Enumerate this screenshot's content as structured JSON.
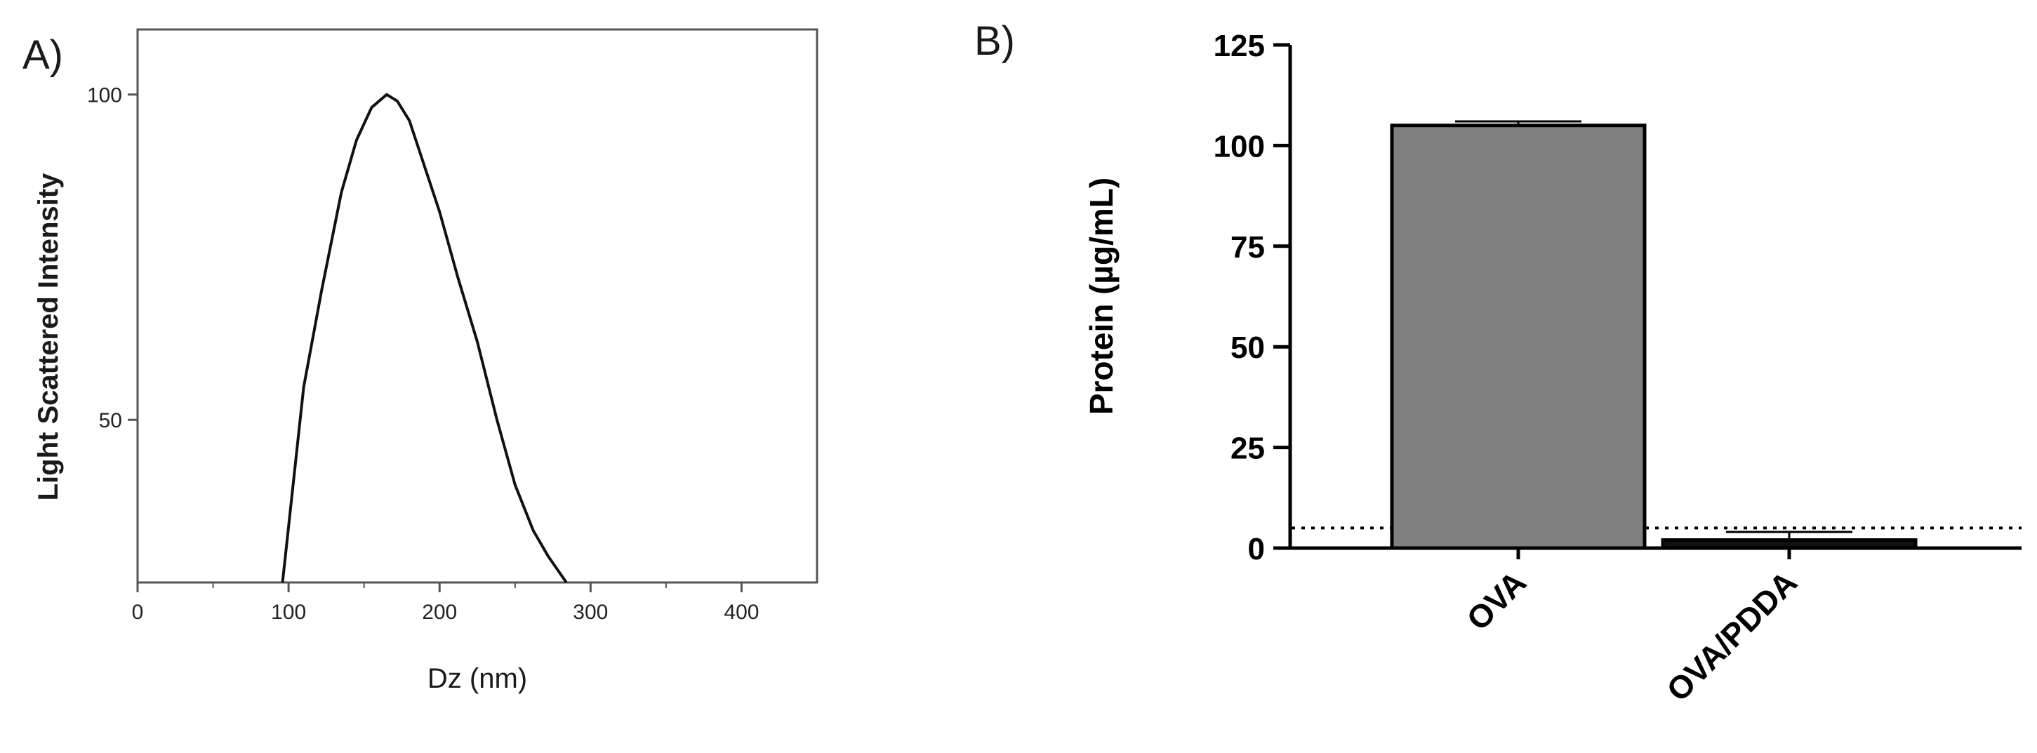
{
  "panel_a": {
    "label": "A)"
  },
  "panel_b": {
    "label": "B)"
  },
  "chart_data": [
    {
      "type": "line",
      "title": "",
      "xlabel": "Dz (nm)",
      "ylabel": "Light Scattered Intensity",
      "xlim": [
        0,
        450
      ],
      "ylim": [
        25,
        110
      ],
      "x_ticks": [
        0,
        100,
        200,
        300,
        400
      ],
      "y_ticks": [
        50,
        100
      ],
      "grid": false,
      "series": [
        {
          "x": [
            96,
            110,
            122,
            135,
            145,
            155,
            165,
            172,
            180,
            190,
            200,
            212,
            225,
            238,
            250,
            262,
            272,
            284
          ],
          "y": [
            25,
            55,
            70,
            85,
            93,
            98,
            100,
            99,
            96,
            89,
            82,
            72,
            62,
            50,
            40,
            33,
            29,
            25
          ]
        }
      ]
    },
    {
      "type": "bar",
      "title": "",
      "xlabel": "",
      "ylabel": "Protein (µg/mL)",
      "ylim": [
        0,
        125
      ],
      "y_ticks": [
        0,
        25,
        50,
        75,
        100,
        125
      ],
      "categories": [
        "OVA",
        "OVA/PDDA"
      ],
      "values": [
        105,
        2
      ],
      "errors": [
        1,
        2
      ],
      "bar_colors": [
        "#808080",
        "#111111"
      ],
      "reference_line": {
        "y": 5,
        "style": "dotted"
      }
    }
  ]
}
